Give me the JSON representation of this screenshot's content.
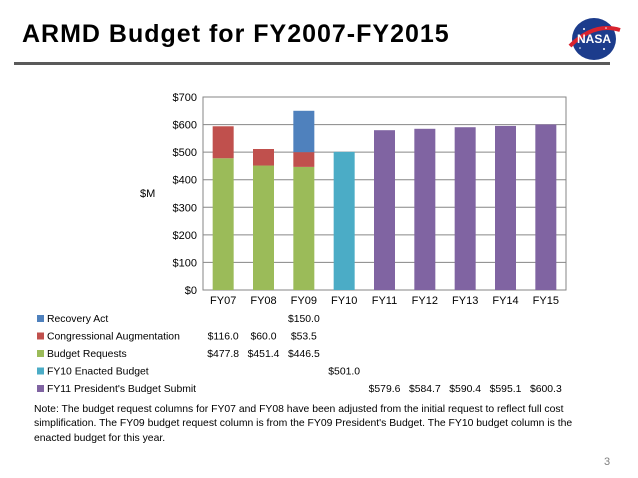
{
  "slide": {
    "title": "ARMD Budget for FY2007-FY2015",
    "logo_text": "NASA",
    "page_number": "3",
    "note": "Note: The budget request columns for FY07 and FY08 have been adjusted from the initial request to reflect full cost simplification. The FY09 budget request column is from the FY09 President's Budget.  The FY10 budget column is the enacted budget for this year."
  },
  "chart_data": {
    "type": "bar",
    "stacked": true,
    "title": "",
    "ylabel": "$M",
    "xlabel": "",
    "ylim": [
      0,
      700
    ],
    "yticks": [
      0,
      100,
      200,
      300,
      400,
      500,
      600,
      700
    ],
    "ytick_labels": [
      "$0",
      "$100",
      "$200",
      "$300",
      "$400",
      "$500",
      "$600",
      "$700"
    ],
    "categories": [
      "FY07",
      "FY08",
      "FY09",
      "FY10",
      "FY11",
      "FY12",
      "FY13",
      "FY14",
      "FY15"
    ],
    "legend_position": "data-table-left",
    "series": [
      {
        "name": "Budget Requests",
        "color": "#9bbb59",
        "values": [
          477.8,
          451.4,
          446.5,
          null,
          null,
          null,
          null,
          null,
          null
        ],
        "labels": [
          "$477.8",
          "$451.4",
          "$446.5",
          "",
          "",
          "",
          "",
          "",
          ""
        ]
      },
      {
        "name": "Congressional Augmentation",
        "color": "#c0504d",
        "values": [
          116.0,
          60.0,
          53.5,
          null,
          null,
          null,
          null,
          null,
          null
        ],
        "labels": [
          "$116.0",
          "$60.0",
          "$53.5",
          "",
          "",
          "",
          "",
          "",
          ""
        ]
      },
      {
        "name": "Recovery Act",
        "color": "#4f81bd",
        "values": [
          null,
          null,
          150.0,
          null,
          null,
          null,
          null,
          null,
          null
        ],
        "labels": [
          "",
          "",
          "$150.0",
          "",
          "",
          "",
          "",
          "",
          ""
        ]
      },
      {
        "name": "FY10 Enacted Budget",
        "color": "#4bacc6",
        "values": [
          null,
          null,
          null,
          501.0,
          null,
          null,
          null,
          null,
          null
        ],
        "labels": [
          "",
          "",
          "",
          "$501.0",
          "",
          "",
          "",
          "",
          ""
        ]
      },
      {
        "name": "FY11 President's Budget Submit",
        "color": "#8064a2",
        "values": [
          null,
          null,
          null,
          null,
          579.6,
          584.7,
          590.4,
          595.1,
          600.3
        ],
        "labels": [
          "",
          "",
          "",
          "",
          "$579.6",
          "$584.7",
          "$590.4",
          "$595.1",
          "$600.3"
        ]
      }
    ],
    "table_order": [
      "Recovery Act",
      "Congressional Augmentation",
      "Budget Requests",
      "FY10 Enacted Budget",
      "FY11 President's Budget Submit"
    ]
  }
}
